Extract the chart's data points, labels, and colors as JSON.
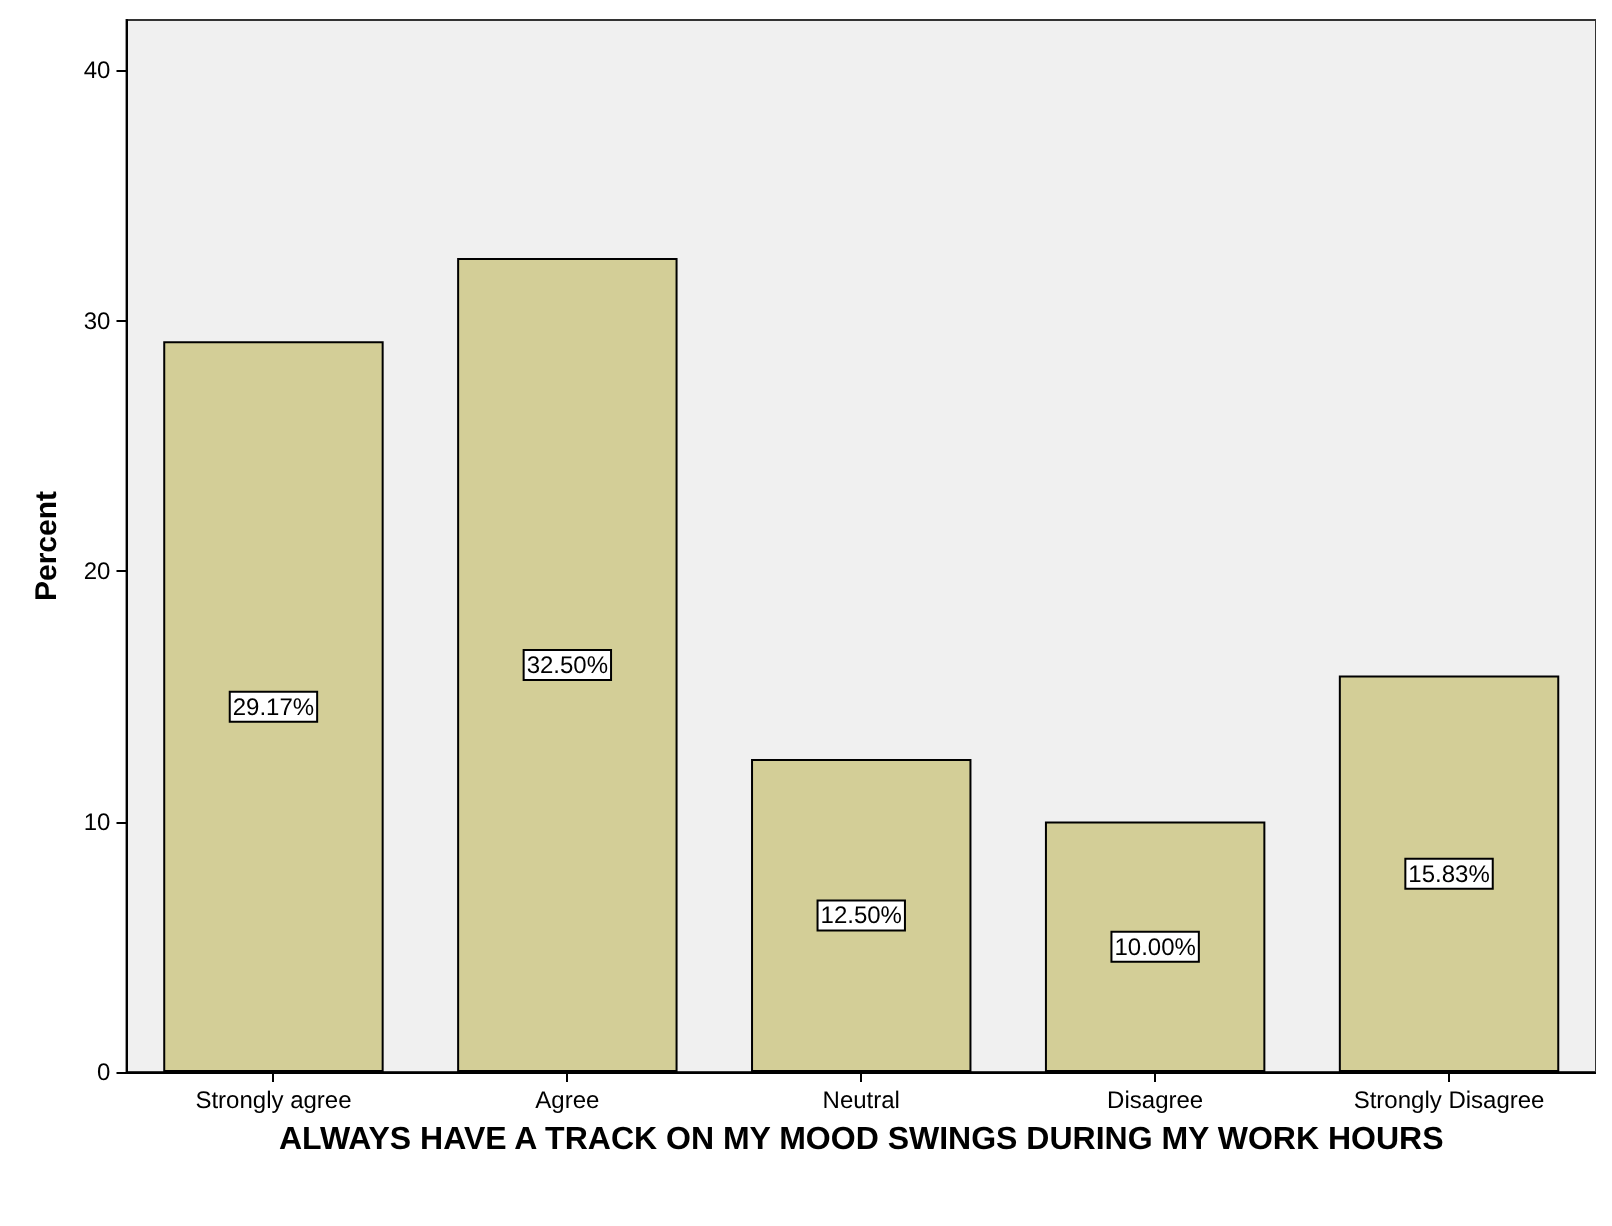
{
  "chart_data": {
    "type": "bar",
    "xlabel": "ALWAYS HAVE A TRACK ON MY MOOD SWINGS DURING MY WORK HOURS",
    "ylabel": "Percent",
    "categories": [
      "Strongly agree",
      "Agree",
      "Neutral",
      "Disagree",
      "Strongly Disagree"
    ],
    "values": [
      29.17,
      32.5,
      12.5,
      10.0,
      15.83
    ],
    "value_labels": [
      "29.17%",
      "32.50%",
      "12.50%",
      "10.00%",
      "15.83%"
    ],
    "color": "#d3ce97",
    "ylim": [
      0,
      42
    ],
    "yticks": [
      0,
      10,
      20,
      30,
      40
    ],
    "grid": false
  }
}
